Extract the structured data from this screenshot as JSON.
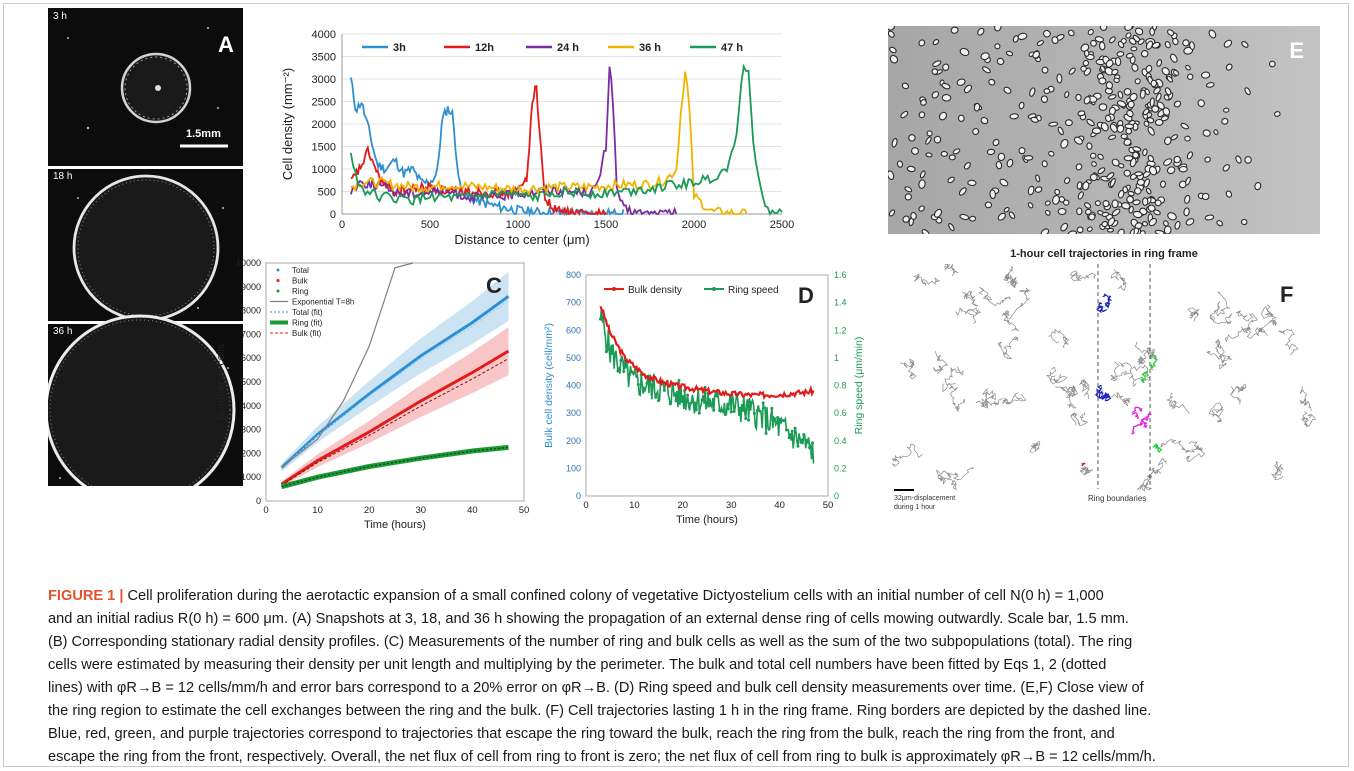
{
  "panels": {
    "a": {
      "label": "A",
      "snapshots": [
        "3 h",
        "18 h",
        "36 h"
      ],
      "scale_bar": "1.5mm"
    },
    "e": {
      "label": "E"
    },
    "f": {
      "label": "F",
      "title": "1-hour cell trajectories in ring frame",
      "ring_boundaries": "Ring boundaries",
      "scale_text": "32μm-displacement\nduring 1 hour",
      "colors": {
        "escape_to_bulk": "#2323c8",
        "reach_from_bulk": "#d42020",
        "reach_from_front": "#1fd02f",
        "escape_to_front": "#e81ee0"
      }
    }
  },
  "caption": {
    "figure_label": "FIGURE 1 |",
    "lines": [
      "Cell proliferation during the aerotactic expansion of a small confined colony of vegetative Dictyostelium cells with an initial number of cell N(0 h) = 1,000",
      "and an initial radius R(0 h) = 600 μm. (A) Snapshots at 3, 18, and 36 h showing the propagation of an external dense ring of cells mowing outwardly. Scale bar, 1.5 mm.",
      "(B) Corresponding stationary radial density profiles. (C) Measurements of the number of ring and bulk cells as well as the sum of the two subpopulations (total). The ring",
      "cells were estimated by measuring their density per unit length and multiplying by the perimeter. The bulk and total cell numbers have been fitted by Eqs 1, 2 (dotted",
      "lines) with φR→B = 12 cells/mm/h and error bars correspond to a 20% error on φR→B. (D) Ring speed and bulk cell density measurements over time. (E,F) Close view of",
      "the ring region to estimate the cell exchanges between the ring and the bulk. (F) Cell trajectories lasting 1 h in the ring frame. Ring borders are depicted by the dashed line.",
      "Blue, red, green, and purple trajectories correspond to trajectories that escape the ring toward the bulk, reach the ring from the bulk, reach the ring from the front, and",
      "escape the ring from the front, respectively. Overall, the net flux of cell from ring to front is zero; the net flux of cell from ring to bulk is approximately φR→B = 12 cells/mm/h."
    ]
  },
  "chart_data": [
    {
      "panel": "B",
      "type": "line",
      "xlabel": "Distance to center (μm)",
      "ylabel": "Cell density (mm⁻²)",
      "xlim": [
        0,
        2500
      ],
      "ylim": [
        0,
        4000
      ],
      "xticks": [
        0,
        500,
        1000,
        1500,
        2000,
        2500
      ],
      "yticks": [
        0,
        500,
        1000,
        1500,
        2000,
        2500,
        3000,
        3500,
        4000
      ],
      "legend": "top",
      "series": [
        {
          "name": "3h",
          "color": "#2f8fd0",
          "x": [
            50,
            80,
            110,
            150,
            200,
            250,
            300,
            350,
            400,
            450,
            500,
            540,
            570,
            600,
            630,
            660,
            700,
            800,
            900,
            1000,
            1100,
            1200,
            1400,
            1600
          ],
          "y": [
            3000,
            2300,
            2500,
            1900,
            1100,
            1000,
            1200,
            900,
            1000,
            700,
            700,
            900,
            2100,
            2350,
            2200,
            800,
            400,
            250,
            150,
            80,
            40,
            20,
            10,
            0
          ]
        },
        {
          "name": "12h",
          "color": "#e21b1b",
          "x": [
            50,
            100,
            150,
            200,
            250,
            300,
            400,
            500,
            600,
            700,
            800,
            900,
            1000,
            1050,
            1080,
            1100,
            1120,
            1150,
            1200,
            1300,
            1500
          ],
          "y": [
            700,
            1000,
            1400,
            900,
            600,
            500,
            550,
            600,
            500,
            500,
            500,
            450,
            500,
            800,
            2400,
            3000,
            2000,
            400,
            100,
            20,
            0
          ]
        },
        {
          "name": "24 h",
          "color": "#7a2ea0",
          "x": [
            50,
            100,
            200,
            300,
            400,
            500,
            600,
            700,
            800,
            900,
            1000,
            1100,
            1200,
            1300,
            1400,
            1450,
            1500,
            1520,
            1540,
            1560,
            1600,
            1700,
            1900
          ],
          "y": [
            500,
            700,
            650,
            500,
            450,
            500,
            500,
            400,
            350,
            400,
            450,
            500,
            550,
            500,
            500,
            600,
            1500,
            3350,
            2500,
            600,
            100,
            10,
            0
          ]
        },
        {
          "name": "36 h",
          "color": "#f0b400",
          "x": [
            50,
            100,
            200,
            300,
            400,
            500,
            600,
            800,
            1000,
            1200,
            1400,
            1600,
            1700,
            1800,
            1850,
            1900,
            1930,
            1950,
            1970,
            2000,
            2100,
            2300
          ],
          "y": [
            600,
            700,
            700,
            650,
            600,
            600,
            650,
            600,
            550,
            600,
            600,
            650,
            650,
            700,
            800,
            1000,
            2500,
            3150,
            2600,
            400,
            50,
            0
          ]
        },
        {
          "name": "47 h",
          "color": "#1a9a55",
          "x": [
            50,
            100,
            200,
            300,
            400,
            500,
            600,
            700,
            800,
            900,
            1000,
            1100,
            1200,
            1400,
            1600,
            1800,
            1900,
            2000,
            2100,
            2150,
            2200,
            2240,
            2270,
            2290,
            2310,
            2340,
            2400,
            2500
          ],
          "y": [
            1300,
            600,
            400,
            350,
            300,
            400,
            350,
            350,
            400,
            450,
            400,
            350,
            500,
            450,
            500,
            600,
            650,
            700,
            800,
            900,
            1100,
            1800,
            3000,
            3350,
            3100,
            1500,
            100,
            0
          ]
        }
      ]
    },
    {
      "panel": "C",
      "type": "line",
      "xlabel": "Time (hours)",
      "ylabel": "Number of cells",
      "xlim": [
        0,
        50
      ],
      "ylim": [
        0,
        10000
      ],
      "xticks": [
        0,
        10,
        20,
        30,
        40,
        50
      ],
      "yticks": [
        0,
        1000,
        2000,
        3000,
        4000,
        5000,
        6000,
        7000,
        8000,
        9000,
        10000
      ],
      "legend_entries": [
        "Total",
        "Bulk",
        "Ring",
        "Exponential T=8h",
        "Total (fit)",
        "Ring (fit)",
        "Bulk (fit)"
      ],
      "series": [
        {
          "name": "Total",
          "color": "#2f8fd0",
          "x": [
            3,
            10,
            20,
            30,
            40,
            47
          ],
          "y": [
            1400,
            2800,
            4500,
            6100,
            7500,
            8600
          ],
          "band": 0.12
        },
        {
          "name": "Bulk",
          "color": "#e21b1b",
          "x": [
            3,
            10,
            20,
            30,
            40,
            47
          ],
          "y": [
            700,
            1700,
            2900,
            4200,
            5400,
            6300
          ],
          "band": 0.16
        },
        {
          "name": "Ring",
          "color": "#1a9a35",
          "x": [
            3,
            10,
            20,
            30,
            40,
            47
          ],
          "y": [
            600,
            1000,
            1450,
            1800,
            2100,
            2250
          ]
        },
        {
          "name": "Exponential T=8h",
          "color": "#808080",
          "x": [
            3,
            10,
            15,
            20,
            25,
            28.5
          ],
          "y": [
            1400,
            2600,
            4200,
            6500,
            9800,
            10000
          ]
        }
      ]
    },
    {
      "panel": "D",
      "type": "line",
      "xlabel": "Time (hours)",
      "ylabel": "Bulk cell density (cell/mm²)",
      "y2label": "Ring speed (μm/min)",
      "xlim": [
        0,
        50
      ],
      "ylim": [
        0,
        800
      ],
      "y2lim": [
        0,
        1.6
      ],
      "xticks": [
        0,
        10,
        20,
        30,
        40,
        50
      ],
      "yticks": [
        0,
        100,
        200,
        300,
        400,
        500,
        600,
        700,
        800
      ],
      "y2ticks": [
        0,
        0.2,
        0.4,
        0.6,
        0.8,
        1,
        1.2,
        1.4,
        1.6
      ],
      "legend": "top",
      "series": [
        {
          "name": "Bulk density",
          "color": "#e21b1b",
          "axis": "left",
          "x": [
            3,
            5,
            8,
            12,
            16,
            20,
            25,
            30,
            35,
            40,
            45,
            47
          ],
          "y": [
            690,
            590,
            500,
            440,
            410,
            395,
            380,
            370,
            365,
            368,
            375,
            380
          ]
        },
        {
          "name": "Ring speed",
          "color": "#1a9a55",
          "axis": "right",
          "x": [
            3,
            5,
            8,
            10,
            15,
            20,
            25,
            30,
            35,
            40,
            45,
            47
          ],
          "y": [
            1.3,
            1.05,
            0.9,
            0.82,
            0.78,
            0.72,
            0.68,
            0.66,
            0.6,
            0.5,
            0.38,
            0.32
          ]
        }
      ]
    }
  ]
}
